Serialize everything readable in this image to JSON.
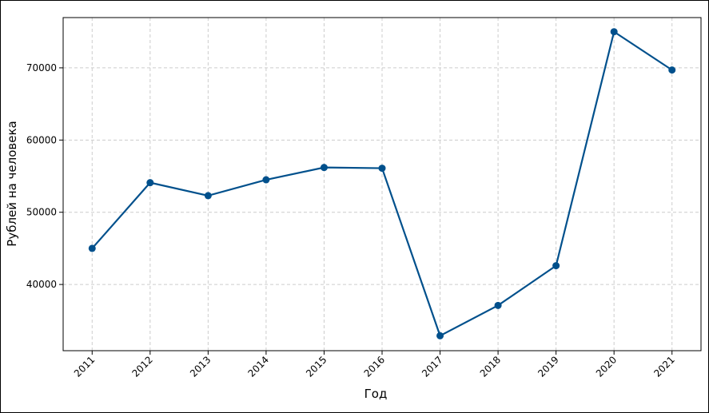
{
  "chart_data": {
    "type": "line",
    "x_label": "Год",
    "y_label": "Рублей на человека",
    "x": [
      2011,
      2012,
      2013,
      2014,
      2015,
      2016,
      2017,
      2018,
      2019,
      2020,
      2021
    ],
    "series": [
      {
        "color": "#00508c",
        "values": [
          45000,
          54100,
          52300,
          54500,
          56200,
          56100,
          32900,
          37100,
          42600,
          75000,
          69700
        ]
      }
    ],
    "xlim": [
      2010.5,
      2021.5
    ],
    "xticks": [
      2011,
      2012,
      2013,
      2014,
      2015,
      2016,
      2017,
      2018,
      2019,
      2020,
      2021
    ],
    "ylim": [
      30830,
      76960
    ],
    "yticks": [
      40000,
      50000,
      60000,
      70000
    ],
    "grid": true
  }
}
